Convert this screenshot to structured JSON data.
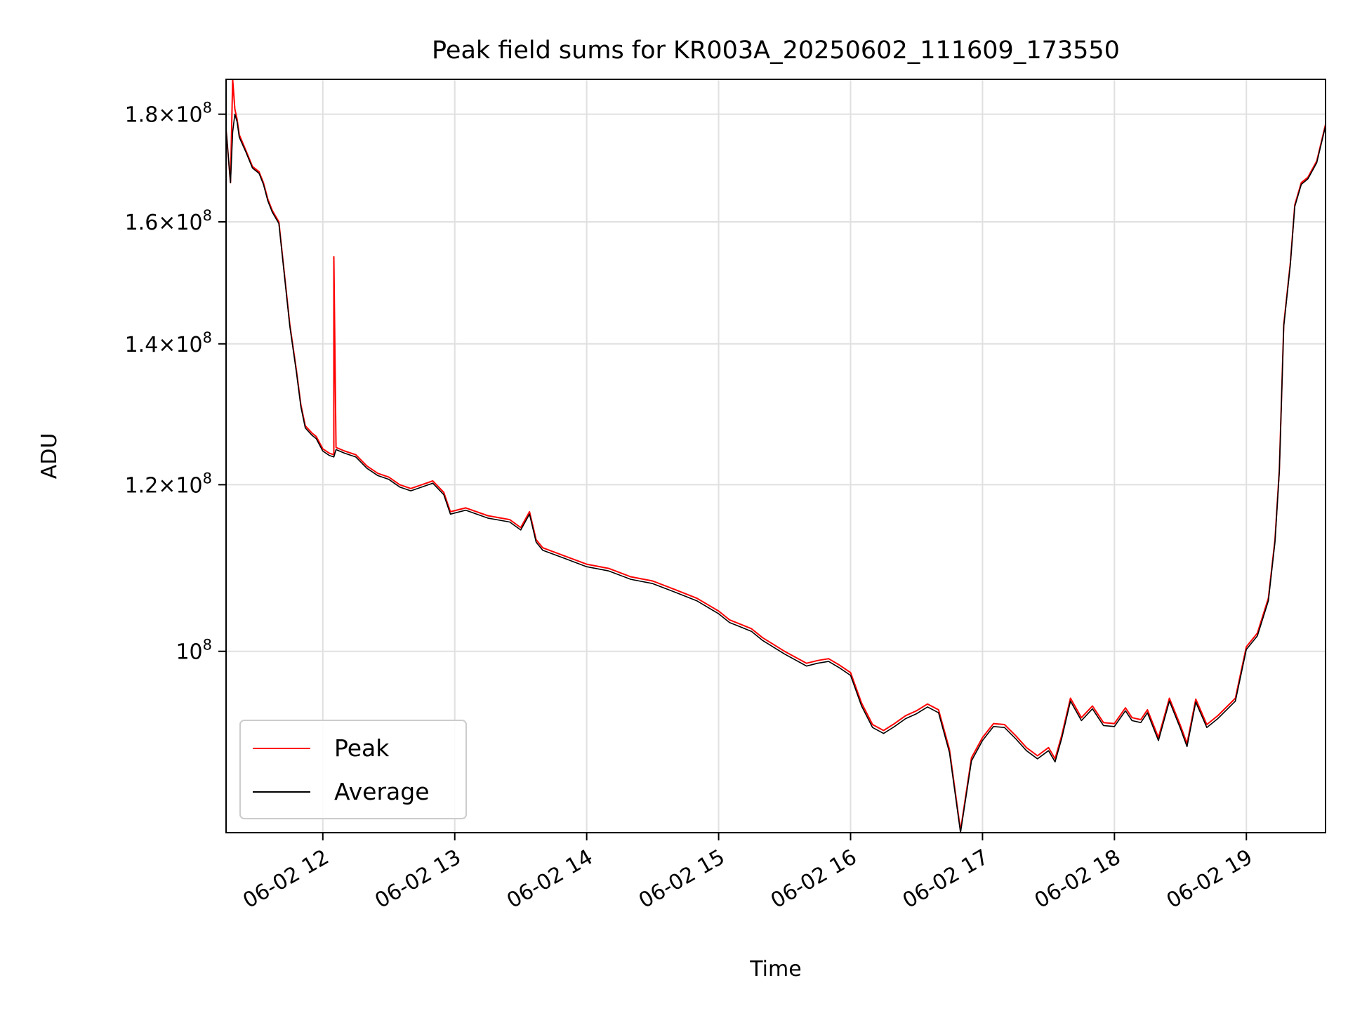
{
  "chart_data": {
    "type": "line",
    "title": "Peak field sums for KR003A_20250602_111609_173550",
    "xlabel": "Time",
    "ylabel": "ADU",
    "yscale": "log",
    "ylim": [
      82000000,
      187000000
    ],
    "xlim": [
      "2025-06-02 11:16",
      "2025-06-02 19:36"
    ],
    "grid": true,
    "legend": {
      "placement": "lower-left",
      "entries": [
        "Peak",
        "Average"
      ]
    },
    "x_ticks": [
      "06-02 12",
      "06-02 13",
      "06-02 14",
      "06-02 15",
      "06-02 16",
      "06-02 17",
      "06-02 18",
      "06-02 19"
    ],
    "y_ticks": [
      {
        "value": 100000000,
        "mantissa": "",
        "base": "10",
        "exp": "8"
      },
      {
        "value": 120000000,
        "mantissa": "1.2",
        "base": "10",
        "exp": "8"
      },
      {
        "value": 140000000,
        "mantissa": "1.4",
        "base": "10",
        "exp": "8"
      },
      {
        "value": 160000000,
        "mantissa": "1.6",
        "base": "10",
        "exp": "8"
      },
      {
        "value": 180000000,
        "mantissa": "1.8",
        "base": "10",
        "exp": "8"
      }
    ],
    "series": [
      {
        "name": "Peak",
        "color": "#ff0000",
        "x": [
          "2025-06-02 11:16",
          "2025-06-02 11:18",
          "2025-06-02 11:19",
          "2025-06-02 11:20",
          "2025-06-02 11:21",
          "2025-06-02 11:22",
          "2025-06-02 11:25",
          "2025-06-02 11:28",
          "2025-06-02 11:31",
          "2025-06-02 11:33",
          "2025-06-02 11:35",
          "2025-06-02 11:37",
          "2025-06-02 11:40",
          "2025-06-02 11:42",
          "2025-06-02 11:45",
          "2025-06-02 11:48",
          "2025-06-02 11:50",
          "2025-06-02 11:52",
          "2025-06-02 11:55",
          "2025-06-02 11:57",
          "2025-06-02 12:00",
          "2025-06-02 12:03",
          "2025-06-02 12:05",
          "2025-06-02 12:05",
          "2025-06-02 12:06",
          "2025-06-02 12:10",
          "2025-06-02 12:15",
          "2025-06-02 12:20",
          "2025-06-02 12:25",
          "2025-06-02 12:30",
          "2025-06-02 12:35",
          "2025-06-02 12:40",
          "2025-06-02 12:45",
          "2025-06-02 12:50",
          "2025-06-02 12:55",
          "2025-06-02 12:58",
          "2025-06-02 13:05",
          "2025-06-02 13:15",
          "2025-06-02 13:25",
          "2025-06-02 13:30",
          "2025-06-02 13:34",
          "2025-06-02 13:37",
          "2025-06-02 13:40",
          "2025-06-02 13:50",
          "2025-06-02 14:00",
          "2025-06-02 14:10",
          "2025-06-02 14:20",
          "2025-06-02 14:30",
          "2025-06-02 14:40",
          "2025-06-02 14:50",
          "2025-06-02 15:00",
          "2025-06-02 15:05",
          "2025-06-02 15:10",
          "2025-06-02 15:15",
          "2025-06-02 15:20",
          "2025-06-02 15:30",
          "2025-06-02 15:40",
          "2025-06-02 15:45",
          "2025-06-02 15:50",
          "2025-06-02 15:55",
          "2025-06-02 16:00",
          "2025-06-02 16:05",
          "2025-06-02 16:10",
          "2025-06-02 16:15",
          "2025-06-02 16:20",
          "2025-06-02 16:25",
          "2025-06-02 16:30",
          "2025-06-02 16:35",
          "2025-06-02 16:40",
          "2025-06-02 16:45",
          "2025-06-02 16:50",
          "2025-06-02 16:55",
          "2025-06-02 17:00",
          "2025-06-02 17:05",
          "2025-06-02 17:10",
          "2025-06-02 17:15",
          "2025-06-02 17:20",
          "2025-06-02 17:25",
          "2025-06-02 17:30",
          "2025-06-02 17:33",
          "2025-06-02 17:36",
          "2025-06-02 17:40",
          "2025-06-02 17:45",
          "2025-06-02 17:50",
          "2025-06-02 17:55",
          "2025-06-02 18:00",
          "2025-06-02 18:05",
          "2025-06-02 18:08",
          "2025-06-02 18:12",
          "2025-06-02 18:15",
          "2025-06-02 18:20",
          "2025-06-02 18:25",
          "2025-06-02 18:30",
          "2025-06-02 18:33",
          "2025-06-02 18:37",
          "2025-06-02 18:42",
          "2025-06-02 18:47",
          "2025-06-02 18:55",
          "2025-06-02 19:00",
          "2025-06-02 19:05",
          "2025-06-02 19:10",
          "2025-06-02 19:13",
          "2025-06-02 19:15",
          "2025-06-02 19:17",
          "2025-06-02 19:20",
          "2025-06-02 19:22",
          "2025-06-02 19:25",
          "2025-06-02 19:28",
          "2025-06-02 19:32",
          "2025-06-02 19:36"
        ],
        "values": [
          177000000,
          167000000,
          187000000,
          181000000,
          179000000,
          176000000,
          173000000,
          170000000,
          169000000,
          167000000,
          164000000,
          162000000,
          160000000,
          153000000,
          143000000,
          136000000,
          131000000,
          128000000,
          127000000,
          126500000,
          124800000,
          124200000,
          124000000,
          154000000,
          125000000,
          124500000,
          124000000,
          122500000,
          121500000,
          121000000,
          120000000,
          119500000,
          120000000,
          120500000,
          119000000,
          116500000,
          117000000,
          116000000,
          115500000,
          114500000,
          116500000,
          113000000,
          112000000,
          111000000,
          110000000,
          109500000,
          108500000,
          108000000,
          107000000,
          106000000,
          104500000,
          103500000,
          103000000,
          102500000,
          101500000,
          100000000,
          98700000,
          99000000,
          99200000,
          98500000,
          97700000,
          94500000,
          92300000,
          91700000,
          92400000,
          93200000,
          93700000,
          94400000,
          93800000,
          89800000,
          82200000,
          89000000,
          91000000,
          92400000,
          92300000,
          91200000,
          90000000,
          89200000,
          90000000,
          88900000,
          91200000,
          95000000,
          93000000,
          94200000,
          92500000,
          92400000,
          94000000,
          93000000,
          92800000,
          93800000,
          91000000,
          95000000,
          92200000,
          90400000,
          94900000,
          92300000,
          93200000,
          95000000,
          100500000,
          102000000,
          106000000,
          113000000,
          122000000,
          143000000,
          153000000,
          163000000,
          167000000,
          168000000,
          171000000,
          178000000
        ]
      },
      {
        "name": "Average",
        "color": "#000000",
        "x": [
          "2025-06-02 11:16",
          "2025-06-02 11:18",
          "2025-06-02 11:19",
          "2025-06-02 11:20",
          "2025-06-02 11:21",
          "2025-06-02 11:22",
          "2025-06-02 11:25",
          "2025-06-02 11:28",
          "2025-06-02 11:31",
          "2025-06-02 11:33",
          "2025-06-02 11:35",
          "2025-06-02 11:37",
          "2025-06-02 11:40",
          "2025-06-02 11:42",
          "2025-06-02 11:45",
          "2025-06-02 11:48",
          "2025-06-02 11:50",
          "2025-06-02 11:52",
          "2025-06-02 11:55",
          "2025-06-02 11:57",
          "2025-06-02 12:00",
          "2025-06-02 12:03",
          "2025-06-02 12:05",
          "2025-06-02 12:06",
          "2025-06-02 12:10",
          "2025-06-02 12:15",
          "2025-06-02 12:20",
          "2025-06-02 12:25",
          "2025-06-02 12:30",
          "2025-06-02 12:35",
          "2025-06-02 12:40",
          "2025-06-02 12:45",
          "2025-06-02 12:50",
          "2025-06-02 12:55",
          "2025-06-02 12:58",
          "2025-06-02 13:05",
          "2025-06-02 13:15",
          "2025-06-02 13:25",
          "2025-06-02 13:30",
          "2025-06-02 13:34",
          "2025-06-02 13:37",
          "2025-06-02 13:40",
          "2025-06-02 13:50",
          "2025-06-02 14:00",
          "2025-06-02 14:10",
          "2025-06-02 14:20",
          "2025-06-02 14:30",
          "2025-06-02 14:40",
          "2025-06-02 14:50",
          "2025-06-02 15:00",
          "2025-06-02 15:05",
          "2025-06-02 15:10",
          "2025-06-02 15:15",
          "2025-06-02 15:20",
          "2025-06-02 15:30",
          "2025-06-02 15:40",
          "2025-06-02 15:45",
          "2025-06-02 15:50",
          "2025-06-02 15:55",
          "2025-06-02 16:00",
          "2025-06-02 16:05",
          "2025-06-02 16:10",
          "2025-06-02 16:15",
          "2025-06-02 16:20",
          "2025-06-02 16:25",
          "2025-06-02 16:30",
          "2025-06-02 16:35",
          "2025-06-02 16:40",
          "2025-06-02 16:45",
          "2025-06-02 16:50",
          "2025-06-02 16:55",
          "2025-06-02 17:00",
          "2025-06-02 17:05",
          "2025-06-02 17:10",
          "2025-06-02 17:15",
          "2025-06-02 17:20",
          "2025-06-02 17:25",
          "2025-06-02 17:30",
          "2025-06-02 17:33",
          "2025-06-02 17:36",
          "2025-06-02 17:40",
          "2025-06-02 17:45",
          "2025-06-02 17:50",
          "2025-06-02 17:55",
          "2025-06-02 18:00",
          "2025-06-02 18:05",
          "2025-06-02 18:08",
          "2025-06-02 18:12",
          "2025-06-02 18:15",
          "2025-06-02 18:20",
          "2025-06-02 18:25",
          "2025-06-02 18:30",
          "2025-06-02 18:33",
          "2025-06-02 18:37",
          "2025-06-02 18:42",
          "2025-06-02 18:47",
          "2025-06-02 18:55",
          "2025-06-02 19:00",
          "2025-06-02 19:05",
          "2025-06-02 19:10",
          "2025-06-02 19:13",
          "2025-06-02 19:15",
          "2025-06-02 19:17",
          "2025-06-02 19:20",
          "2025-06-02 19:22",
          "2025-06-02 19:25",
          "2025-06-02 19:28",
          "2025-06-02 19:32",
          "2025-06-02 19:36"
        ],
        "values": [
          177000000,
          167000000,
          176500000,
          180000000,
          178500000,
          175500000,
          172700000,
          169700000,
          168700000,
          166700000,
          163700000,
          161700000,
          159700000,
          152700000,
          142700000,
          135700000,
          130700000,
          127700000,
          126700000,
          126200000,
          124500000,
          123900000,
          123700000,
          124700000,
          124200000,
          123700000,
          122200000,
          121200000,
          120700000,
          119700000,
          119200000,
          119700000,
          120200000,
          118700000,
          116200000,
          116700000,
          115700000,
          115200000,
          114200000,
          116200000,
          112700000,
          111700000,
          110700000,
          109700000,
          109200000,
          108200000,
          107700000,
          106700000,
          105700000,
          104200000,
          103200000,
          102700000,
          102200000,
          101200000,
          99700000,
          98400000,
          98700000,
          98900000,
          98200000,
          97400000,
          94200000,
          92000000,
          91400000,
          92100000,
          92900000,
          93400000,
          94100000,
          93500000,
          89500000,
          82000000,
          88700000,
          90700000,
          92100000,
          92000000,
          90900000,
          89700000,
          88900000,
          89700000,
          88600000,
          90900000,
          94700000,
          92700000,
          93900000,
          92200000,
          92100000,
          93700000,
          92700000,
          92500000,
          93500000,
          90700000,
          94700000,
          91900000,
          90100000,
          94600000,
          92000000,
          92900000,
          94700000,
          100200000,
          101700000,
          105700000,
          112700000,
          121700000,
          142700000,
          152700000,
          162700000,
          166700000,
          167700000,
          170700000,
          177700000
        ]
      }
    ]
  }
}
